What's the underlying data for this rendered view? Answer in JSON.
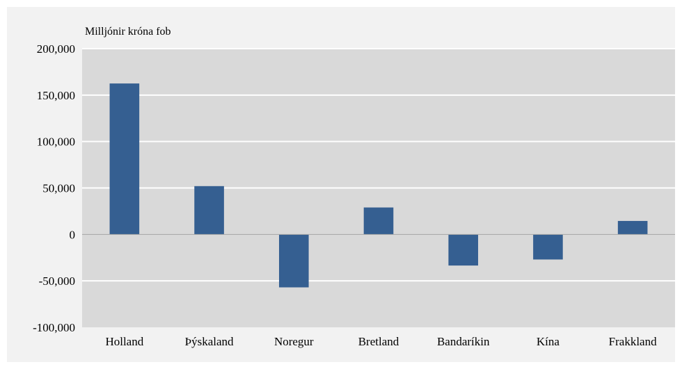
{
  "chart_data": {
    "type": "bar",
    "title": "",
    "xlabel": "",
    "ylabel": "Milljónir króna fob",
    "categories": [
      "Holland",
      "Þýskaland",
      "Noregur",
      "Bretland",
      "Bandaríkin",
      "Kína",
      "Frakkland"
    ],
    "series": [
      {
        "values": [
          162500,
          52000,
          -57000,
          29000,
          -33500,
          -27000,
          14500
        ]
      }
    ],
    "ylim": [
      -100000,
      200000
    ],
    "yticks": [
      -100000,
      -50000,
      0,
      50000,
      100000,
      150000,
      200000
    ],
    "ytick_labels": [
      "-100,000",
      "-50,000",
      "0",
      "50,000",
      "100,000",
      "150,000",
      "200,000"
    ],
    "grid": true,
    "legend": "none",
    "colors": {
      "bar": "#355f91",
      "plot_bg": "#d9d9d9",
      "outer_bg": "#f2f2f2",
      "gridline": "#ffffff",
      "zero_line": "#a6a6a6"
    }
  }
}
